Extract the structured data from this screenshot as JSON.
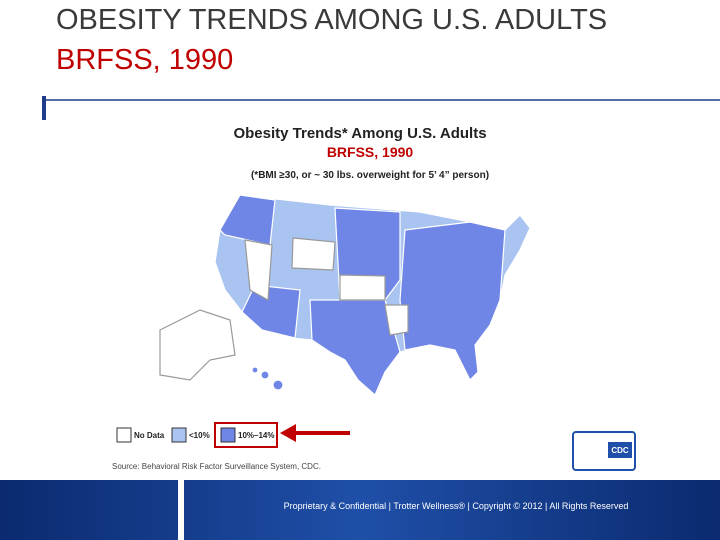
{
  "slide": {
    "title": "OBESITY TRENDS AMONG U.S. ADULTS",
    "subtitle": "BRFSS, 1990",
    "map": {
      "title": "Obesity Trends* Among U.S. Adults",
      "subtitle": "BRFSS, 1990",
      "note": "(*BMI ≥30, or ~ 30 lbs. overweight for 5’ 4” person)",
      "legend": [
        "No Data",
        "<10%",
        "10%–14%"
      ],
      "source": "Source: Behavioral Risk Factor Surveillance System, CDC.",
      "logo": "CDC"
    },
    "footer": "Proprietary & Confidential | Trotter Wellness® | Copyright © 2012 | All Rights Reserved"
  }
}
